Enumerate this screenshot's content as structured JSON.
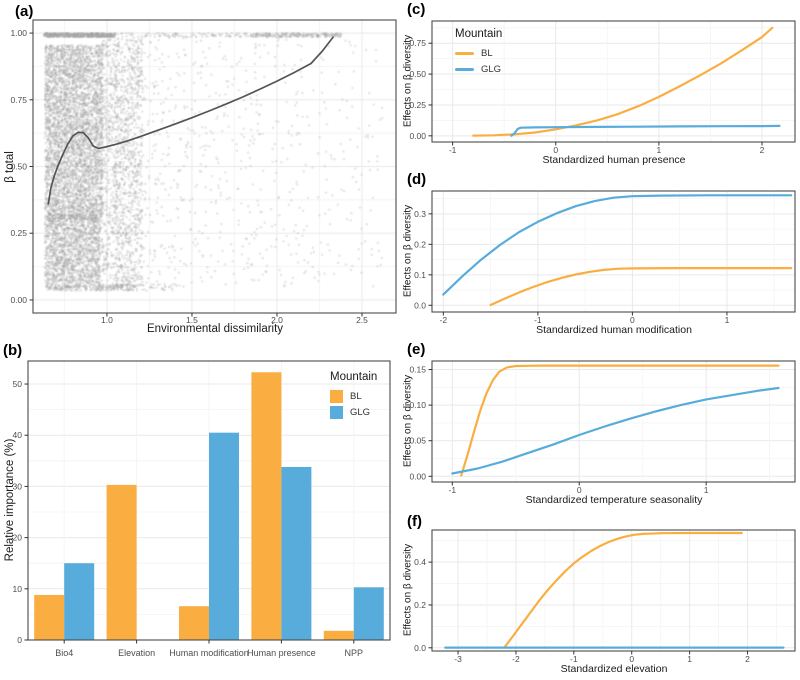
{
  "figure": {
    "colors": {
      "bl": "#FAAE42",
      "glg": "#57ACDC",
      "smooth": "#545454",
      "grid_major": "#E9E9E9",
      "grid_minor": "#F4F4F4",
      "border": "#4A4A4A",
      "tick": "#333333",
      "tick_text": "#4D4D4D",
      "label_text": "#1A1A1A"
    },
    "legend": {
      "title": "Mountain",
      "bl": "BL",
      "glg": "GLG"
    }
  },
  "chart_data": [
    {
      "id": "a",
      "tag": "(a)",
      "type": "scatter",
      "xlabel": "Environmental dissimilarity",
      "ylabel": "β total",
      "xlim": [
        0.565,
        2.7
      ],
      "ylim": [
        -0.049,
        1.049
      ],
      "xticks": {
        "values": [
          1.0,
          1.5,
          2.0,
          2.5
        ],
        "labels": [
          "1.0",
          "1.5",
          "2.0",
          "2.5"
        ]
      },
      "yticks": {
        "values": [
          0,
          0.25,
          0.5,
          0.75,
          1.0
        ],
        "labels": [
          "0.00",
          "0.25",
          "0.50",
          "0.75",
          "1.00"
        ]
      },
      "point_rgba": "rgba(166,166,166,0.28)",
      "point_radius": 1.2,
      "scatter_clusters": [
        {
          "n": 4200,
          "x": [
            0.635,
            0.975
          ],
          "y": [
            0.3,
            0.955
          ]
        },
        {
          "n": 1600,
          "x": [
            0.635,
            0.96
          ],
          "y": [
            0.06,
            0.32
          ]
        },
        {
          "n": 560,
          "x": [
            0.63,
            1.05
          ],
          "y": [
            0.985,
            1.0
          ]
        },
        {
          "n": 1250,
          "x": [
            0.97,
            1.21
          ],
          "y": [
            0.04,
            0.98
          ]
        },
        {
          "n": 850,
          "x": [
            1.05,
            2.62
          ],
          "y": [
            0.05,
            0.985
          ],
          "bias": 1.8
        },
        {
          "n": 230,
          "x": [
            1.86,
            2.38
          ],
          "y": [
            0.985,
            1.0
          ]
        },
        {
          "n": 110,
          "x": [
            1.06,
            1.86
          ],
          "y": [
            0.985,
            1.0
          ]
        },
        {
          "n": 260,
          "x": [
            0.64,
            1.15
          ],
          "y": [
            0.035,
            0.058
          ]
        },
        {
          "n": 40,
          "x": [
            1.15,
            1.45
          ],
          "y": [
            0.035,
            0.06
          ]
        }
      ],
      "smooth_line": [
        [
          0.655,
          0.36
        ],
        [
          0.67,
          0.42
        ],
        [
          0.69,
          0.465
        ],
        [
          0.71,
          0.5
        ],
        [
          0.74,
          0.545
        ],
        [
          0.77,
          0.585
        ],
        [
          0.8,
          0.615
        ],
        [
          0.83,
          0.628
        ],
        [
          0.86,
          0.627
        ],
        [
          0.89,
          0.607
        ],
        [
          0.92,
          0.576
        ],
        [
          0.95,
          0.568
        ],
        [
          0.99,
          0.573
        ],
        [
          1.05,
          0.583
        ],
        [
          1.12,
          0.596
        ],
        [
          1.2,
          0.613
        ],
        [
          1.3,
          0.636
        ],
        [
          1.4,
          0.659
        ],
        [
          1.5,
          0.683
        ],
        [
          1.6,
          0.708
        ],
        [
          1.7,
          0.734
        ],
        [
          1.8,
          0.761
        ],
        [
          1.9,
          0.79
        ],
        [
          2.0,
          0.82
        ],
        [
          2.1,
          0.852
        ],
        [
          2.2,
          0.886
        ],
        [
          2.27,
          0.935
        ],
        [
          2.33,
          0.985
        ]
      ]
    },
    {
      "id": "b",
      "tag": "(b)",
      "type": "bar",
      "ylabel": "Relative importance (%)",
      "categories": [
        "Bio4",
        "Elevation",
        "Human modification",
        "Human presence",
        "NPP"
      ],
      "series": [
        {
          "name": "BL",
          "color_key": "bl",
          "values": [
            8.8,
            30.3,
            6.6,
            52.3,
            1.8
          ]
        },
        {
          "name": "GLG",
          "color_key": "glg",
          "values": [
            15.0,
            0,
            40.5,
            33.8,
            10.3
          ]
        }
      ],
      "ylim": [
        0,
        54.5
      ],
      "yticks": {
        "values": [
          0,
          10,
          20,
          30,
          40,
          50
        ],
        "labels": [
          "0",
          "10",
          "20",
          "30",
          "40",
          "50"
        ]
      },
      "legend": true
    },
    {
      "id": "c",
      "tag": "(c)",
      "type": "line",
      "xlabel": "Standardized human presence",
      "ylabel": "Effects on β diversity",
      "xlim": [
        -1.2,
        2.32
      ],
      "ylim": [
        -0.05,
        0.93
      ],
      "xticks": {
        "values": [
          -1,
          0,
          1,
          2
        ],
        "labels": [
          "-1",
          "0",
          "1",
          "2"
        ]
      },
      "yticks": {
        "values": [
          0,
          0.25,
          0.5,
          0.75
        ],
        "labels": [
          "0.00",
          "0.25",
          "0.50",
          "0.75"
        ]
      },
      "legend": true,
      "series": [
        {
          "name": "BL",
          "color_key": "bl",
          "points": [
            [
              -0.8,
              0.002
            ],
            [
              -0.6,
              0.004
            ],
            [
              -0.4,
              0.012
            ],
            [
              -0.2,
              0.027
            ],
            [
              0,
              0.053
            ],
            [
              0.2,
              0.085
            ],
            [
              0.4,
              0.125
            ],
            [
              0.6,
              0.175
            ],
            [
              0.8,
              0.24
            ],
            [
              1.0,
              0.315
            ],
            [
              1.2,
              0.4
            ],
            [
              1.4,
              0.49
            ],
            [
              1.6,
              0.585
            ],
            [
              1.8,
              0.69
            ],
            [
              2.0,
              0.8
            ],
            [
              2.1,
              0.875
            ]
          ]
        },
        {
          "name": "GLG",
          "color_key": "glg",
          "points": [
            [
              -0.43,
              0.001
            ],
            [
              -0.4,
              0.02
            ],
            [
              -0.37,
              0.055
            ],
            [
              -0.34,
              0.066
            ],
            [
              -0.2,
              0.068
            ],
            [
              0,
              0.07
            ],
            [
              0.4,
              0.072
            ],
            [
              0.8,
              0.074
            ],
            [
              1.2,
              0.076
            ],
            [
              1.6,
              0.078
            ],
            [
              2.0,
              0.079
            ],
            [
              2.17,
              0.08
            ]
          ]
        }
      ]
    },
    {
      "id": "d",
      "tag": "(d)",
      "type": "line",
      "xlabel": "Standardized human modification",
      "ylabel": "Effects on β diversity",
      "xlim": [
        -2.12,
        1.72
      ],
      "ylim": [
        -0.022,
        0.375
      ],
      "xticks": {
        "values": [
          -2,
          -1,
          0,
          1
        ],
        "labels": [
          "-2",
          "-1",
          "0",
          "1"
        ]
      },
      "yticks": {
        "values": [
          0,
          0.1,
          0.2,
          0.3
        ],
        "labels": [
          "0.0",
          "0.1",
          "0.2",
          "0.3"
        ]
      },
      "legend": false,
      "series": [
        {
          "name": "BL",
          "color_key": "bl",
          "points": [
            [
              -1.5,
              0.001
            ],
            [
              -1.35,
              0.022
            ],
            [
              -1.2,
              0.042
            ],
            [
              -1.05,
              0.06
            ],
            [
              -0.9,
              0.076
            ],
            [
              -0.75,
              0.09
            ],
            [
              -0.6,
              0.101
            ],
            [
              -0.45,
              0.11
            ],
            [
              -0.3,
              0.116
            ],
            [
              -0.15,
              0.12
            ],
            [
              0,
              0.121
            ],
            [
              0.4,
              0.122
            ],
            [
              1.0,
              0.122
            ],
            [
              1.68,
              0.122
            ]
          ]
        },
        {
          "name": "GLG",
          "color_key": "glg",
          "points": [
            [
              -2.0,
              0.035
            ],
            [
              -1.8,
              0.095
            ],
            [
              -1.6,
              0.15
            ],
            [
              -1.4,
              0.198
            ],
            [
              -1.2,
              0.24
            ],
            [
              -1.0,
              0.274
            ],
            [
              -0.8,
              0.302
            ],
            [
              -0.6,
              0.325
            ],
            [
              -0.4,
              0.342
            ],
            [
              -0.2,
              0.353
            ],
            [
              0,
              0.358
            ],
            [
              0.3,
              0.36
            ],
            [
              0.8,
              0.361
            ],
            [
              1.3,
              0.361
            ],
            [
              1.68,
              0.361
            ]
          ]
        }
      ]
    },
    {
      "id": "e",
      "tag": "(e)",
      "type": "line",
      "xlabel": "Standardized temperature seasonality",
      "ylabel": "Effects on β diversity",
      "xlim": [
        -1.16,
        1.7
      ],
      "ylim": [
        -0.008,
        0.162
      ],
      "xticks": {
        "values": [
          -1,
          0,
          1
        ],
        "labels": [
          "-1",
          "0",
          "1"
        ]
      },
      "yticks": {
        "values": [
          0,
          0.05,
          0.1,
          0.15
        ],
        "labels": [
          "0.00",
          "0.05",
          "0.10",
          "0.15"
        ]
      },
      "legend": false,
      "series": [
        {
          "name": "BL",
          "color_key": "bl",
          "points": [
            [
              -0.93,
              0.001
            ],
            [
              -0.88,
              0.03
            ],
            [
              -0.83,
              0.062
            ],
            [
              -0.78,
              0.092
            ],
            [
              -0.73,
              0.117
            ],
            [
              -0.68,
              0.135
            ],
            [
              -0.63,
              0.147
            ],
            [
              -0.57,
              0.153
            ],
            [
              -0.5,
              0.155
            ],
            [
              -0.3,
              0.1555
            ],
            [
              0,
              0.1555
            ],
            [
              0.5,
              0.1555
            ],
            [
              1.0,
              0.1555
            ],
            [
              1.57,
              0.1555
            ]
          ]
        },
        {
          "name": "GLG",
          "color_key": "glg",
          "points": [
            [
              -1.0,
              0.004
            ],
            [
              -0.8,
              0.011
            ],
            [
              -0.6,
              0.021
            ],
            [
              -0.4,
              0.033
            ],
            [
              -0.2,
              0.045
            ],
            [
              0,
              0.058
            ],
            [
              0.2,
              0.07
            ],
            [
              0.4,
              0.081
            ],
            [
              0.6,
              0.091
            ],
            [
              0.8,
              0.1
            ],
            [
              1.0,
              0.108
            ],
            [
              1.2,
              0.114
            ],
            [
              1.4,
              0.12
            ],
            [
              1.57,
              0.124
            ]
          ]
        }
      ]
    },
    {
      "id": "f",
      "tag": "(f)",
      "type": "line",
      "xlabel": "Standardized elevation",
      "ylabel": "Effects on β diversity",
      "xlim": [
        -3.45,
        2.82
      ],
      "ylim": [
        -0.015,
        0.55
      ],
      "xticks": {
        "values": [
          -3,
          -2,
          -1,
          0,
          1,
          2
        ],
        "labels": [
          "-3",
          "-2",
          "-1",
          "0",
          "1",
          "2"
        ]
      },
      "yticks": {
        "values": [
          0,
          0.2,
          0.4
        ],
        "labels": [
          "0.0",
          "0.2",
          "0.4"
        ]
      },
      "legend": false,
      "series": [
        {
          "name": "BL",
          "color_key": "bl",
          "points": [
            [
              -2.2,
              0.002
            ],
            [
              -2.05,
              0.055
            ],
            [
              -1.9,
              0.11
            ],
            [
              -1.75,
              0.165
            ],
            [
              -1.6,
              0.22
            ],
            [
              -1.45,
              0.27
            ],
            [
              -1.3,
              0.315
            ],
            [
              -1.15,
              0.357
            ],
            [
              -1.0,
              0.394
            ],
            [
              -0.85,
              0.425
            ],
            [
              -0.7,
              0.452
            ],
            [
              -0.55,
              0.475
            ],
            [
              -0.4,
              0.494
            ],
            [
              -0.25,
              0.509
            ],
            [
              -0.1,
              0.52
            ],
            [
              0.05,
              0.528
            ],
            [
              0.2,
              0.532
            ],
            [
              0.5,
              0.535
            ],
            [
              1.0,
              0.536
            ],
            [
              1.9,
              0.536
            ]
          ]
        },
        {
          "name": "GLG",
          "color_key": "glg",
          "points": [
            [
              -3.22,
              0.001
            ],
            [
              2.62,
              0.001
            ]
          ]
        }
      ]
    }
  ]
}
